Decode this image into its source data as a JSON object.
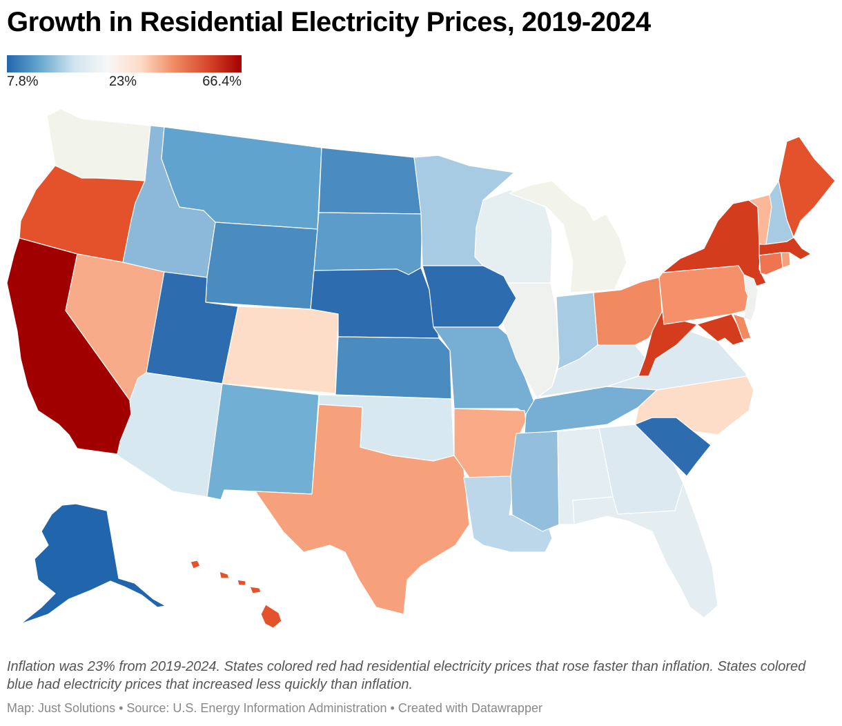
{
  "title": "Growth in Residential Electricity Prices, 2019-2024",
  "legend": {
    "min_label": "7.8%",
    "mid_label": "23%",
    "max_label": "66.4%",
    "min_value": 7.8,
    "mid_value": 23,
    "max_value": 66.4,
    "colors": [
      "#2166ac",
      "#67a9cf",
      "#d1e5f0",
      "#f7f7f7",
      "#fddbc7",
      "#ef8a62",
      "#d6472a",
      "#a50000"
    ]
  },
  "note": "Inflation was 23% from 2019-2024. States colored red had residential electricity prices that rose faster than inflation. States colored blue had electricity prices that increased less quickly than inflation.",
  "source": "Map: Just Solutions • Source: U.S. Energy Information Administration • Created with Datawrapper",
  "states": [
    {
      "name": "Washington",
      "abbr": "WA",
      "fill": "#f2f4ec"
    },
    {
      "name": "Oregon",
      "abbr": "OR",
      "fill": "#e4522b"
    },
    {
      "name": "California",
      "abbr": "CA",
      "fill": "#a00000"
    },
    {
      "name": "Nevada",
      "abbr": "NV",
      "fill": "#f7ab88"
    },
    {
      "name": "Idaho",
      "abbr": "ID",
      "fill": "#8cb9da"
    },
    {
      "name": "Montana",
      "abbr": "MT",
      "fill": "#61a3cf"
    },
    {
      "name": "Wyoming",
      "abbr": "WY",
      "fill": "#4b8cc0"
    },
    {
      "name": "Utah",
      "abbr": "UT",
      "fill": "#2e6cb0"
    },
    {
      "name": "Arizona",
      "abbr": "AZ",
      "fill": "#d8e8f1"
    },
    {
      "name": "Colorado",
      "abbr": "CO",
      "fill": "#fddcc8"
    },
    {
      "name": "New Mexico",
      "abbr": "NM",
      "fill": "#72afd4"
    },
    {
      "name": "North Dakota",
      "abbr": "ND",
      "fill": "#4b8cc0"
    },
    {
      "name": "South Dakota",
      "abbr": "SD",
      "fill": "#5b9ccb"
    },
    {
      "name": "Nebraska",
      "abbr": "NE",
      "fill": "#2e6cb0"
    },
    {
      "name": "Kansas",
      "abbr": "KS",
      "fill": "#4b8cc0"
    },
    {
      "name": "Oklahoma",
      "abbr": "OK",
      "fill": "#d8e8f1"
    },
    {
      "name": "Texas",
      "abbr": "TX",
      "fill": "#f7a07c"
    },
    {
      "name": "Minnesota",
      "abbr": "MN",
      "fill": "#a7cbe2"
    },
    {
      "name": "Iowa",
      "abbr": "IA",
      "fill": "#2e6cb0"
    },
    {
      "name": "Missouri",
      "abbr": "MO",
      "fill": "#76aed4"
    },
    {
      "name": "Arkansas",
      "abbr": "AR",
      "fill": "#f9ab88"
    },
    {
      "name": "Louisiana",
      "abbr": "LA",
      "fill": "#bcd7ea"
    },
    {
      "name": "Wisconsin",
      "abbr": "WI",
      "fill": "#e5eef1"
    },
    {
      "name": "Illinois",
      "abbr": "IL",
      "fill": "#eef1ee"
    },
    {
      "name": "Michigan",
      "abbr": "MI",
      "fill": "#f2f4ec"
    },
    {
      "name": "Indiana",
      "abbr": "IN",
      "fill": "#a7cbe2"
    },
    {
      "name": "Ohio",
      "abbr": "OH",
      "fill": "#f28a61"
    },
    {
      "name": "Kentucky",
      "abbr": "KY",
      "fill": "#dce9f1"
    },
    {
      "name": "Tennessee",
      "abbr": "TN",
      "fill": "#76aed4"
    },
    {
      "name": "Mississippi",
      "abbr": "MS",
      "fill": "#93bfdc"
    },
    {
      "name": "Alabama",
      "abbr": "AL",
      "fill": "#e3edf2"
    },
    {
      "name": "Georgia",
      "abbr": "GA",
      "fill": "#dce9f1"
    },
    {
      "name": "Florida",
      "abbr": "FL",
      "fill": "#e3edf2"
    },
    {
      "name": "South Carolina",
      "abbr": "SC",
      "fill": "#2e6cb0"
    },
    {
      "name": "North Carolina",
      "abbr": "NC",
      "fill": "#fddcc8"
    },
    {
      "name": "Virginia",
      "abbr": "VA",
      "fill": "#dce9f1"
    },
    {
      "name": "West Virginia",
      "abbr": "WV",
      "fill": "#d33c1c"
    },
    {
      "name": "Pennsylvania",
      "abbr": "PA",
      "fill": "#f5906a"
    },
    {
      "name": "New York",
      "abbr": "NY",
      "fill": "#d33c1c"
    },
    {
      "name": "Maryland",
      "abbr": "MD",
      "fill": "#d33c1c"
    },
    {
      "name": "Delaware",
      "abbr": "DE",
      "fill": "#f28a61"
    },
    {
      "name": "New Jersey",
      "abbr": "NJ",
      "fill": "#eef1ee"
    },
    {
      "name": "Connecticut",
      "abbr": "CT",
      "fill": "#ee7452"
    },
    {
      "name": "Rhode Island",
      "abbr": "RI",
      "fill": "#f7a07c"
    },
    {
      "name": "Massachusetts",
      "abbr": "MA",
      "fill": "#d33c1c"
    },
    {
      "name": "Vermont",
      "abbr": "VT",
      "fill": "#fbb797"
    },
    {
      "name": "New Hampshire",
      "abbr": "NH",
      "fill": "#a7cbe2"
    },
    {
      "name": "Maine",
      "abbr": "ME",
      "fill": "#e4522b"
    },
    {
      "name": "Alaska",
      "abbr": "AK",
      "fill": "#2166ac"
    },
    {
      "name": "Hawaii",
      "abbr": "HI",
      "fill": "#e4522b"
    }
  ]
}
